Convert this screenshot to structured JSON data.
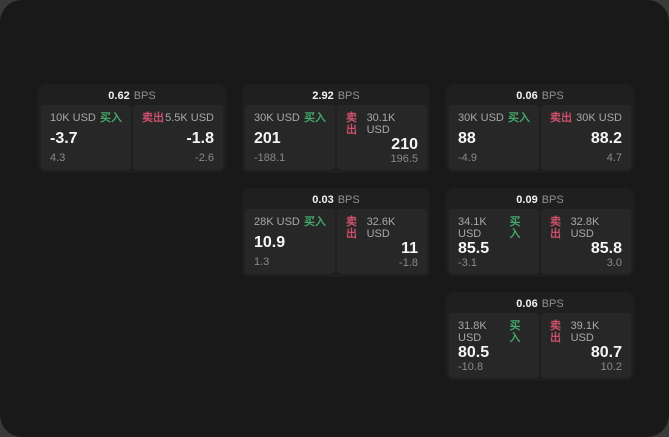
{
  "labels": {
    "bps": "BPS",
    "buy": "买入",
    "sell": "卖出"
  },
  "colors": {
    "buy": "#43a569",
    "sell": "#c9506a",
    "window_background": "#191919",
    "card_background": "#1f1f1f",
    "panel_background": "#272727"
  },
  "cards": [
    {
      "bps": "0.62",
      "row": 1,
      "col": 1,
      "buy": {
        "amount": "10K USD",
        "price": "-3.7",
        "delta": "4.3"
      },
      "sell": {
        "amount": "5.5K USD",
        "price": "-1.8",
        "delta": "-2.6"
      }
    },
    {
      "bps": "2.92",
      "row": 1,
      "col": 2,
      "buy": {
        "amount": "30K USD",
        "price": "201",
        "delta": "-188.1"
      },
      "sell": {
        "amount": "30.1K USD",
        "price": "210",
        "delta": "196.5"
      }
    },
    {
      "bps": "0.06",
      "row": 1,
      "col": 3,
      "buy": {
        "amount": "30K USD",
        "price": "88",
        "delta": "-4.9"
      },
      "sell": {
        "amount": "30K USD",
        "price": "88.2",
        "delta": "4.7"
      }
    },
    {
      "bps": "0.03",
      "row": 2,
      "col": 2,
      "buy": {
        "amount": "28K USD",
        "price": "10.9",
        "delta": "1.3"
      },
      "sell": {
        "amount": "32.6K USD",
        "price": "11",
        "delta": "-1.8"
      }
    },
    {
      "bps": "0.09",
      "row": 2,
      "col": 3,
      "buy": {
        "amount": "34.1K USD",
        "price": "85.5",
        "delta": "-3.1"
      },
      "sell": {
        "amount": "32.8K USD",
        "price": "85.8",
        "delta": "3.0"
      }
    },
    {
      "bps": "0.06",
      "row": 3,
      "col": 3,
      "buy": {
        "amount": "31.8K USD",
        "price": "80.5",
        "delta": "-10.8"
      },
      "sell": {
        "amount": "39.1K USD",
        "price": "80.7",
        "delta": "10.2"
      }
    }
  ]
}
